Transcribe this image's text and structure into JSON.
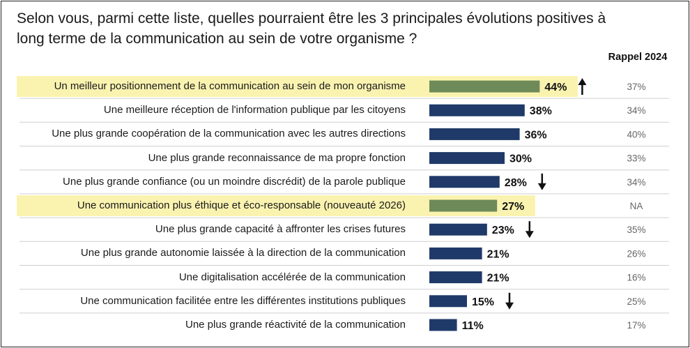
{
  "title": "Selon vous, parmi cette liste, quelles pourraient être les 3 principales évolutions positives à long terme de la communication au sein de votre organisme ?",
  "rappel_header": "Rappel 2024",
  "colors": {
    "bar_main": "#1f3a68",
    "bar_highlight": "#6e8a58",
    "row_highlight": "#faf3b0",
    "separator": "#cfcfcf",
    "rappel_text": "#666666"
  },
  "chart_data": {
    "type": "bar",
    "orientation": "horizontal",
    "title": "Selon vous, parmi cette liste, quelles pourraient être les 3 principales évolutions positives à long terme de la communication au sein de votre organisme ?",
    "xlabel": "",
    "ylabel": "",
    "xlim": [
      0,
      100
    ],
    "unit": "%",
    "categories": [
      "Un meilleur positionnement de la communication au sein de mon organisme",
      "Une meilleure réception de l'information publique par les citoyens",
      "Une plus grande coopération de la communication avec les autres directions",
      "Une plus grande reconnaissance de ma propre fonction",
      "Une plus grande confiance (ou un moindre discrédit) de la parole publique",
      "Une communication plus éthique et éco-responsable (nouveauté 2026)",
      "Une plus grande capacité à affronter les crises futures",
      "Une plus grande autonomie laissée à la direction de la communication",
      "Une digitalisation accélérée de la communication",
      "Une communication facilitée entre les différentes institutions publiques",
      "Une plus grande réactivité de la communication"
    ],
    "values": [
      44,
      38,
      36,
      30,
      28,
      27,
      23,
      21,
      21,
      15,
      11
    ],
    "value_labels": [
      "44%",
      "38%",
      "36%",
      "30%",
      "28%",
      "27%",
      "23%",
      "21%",
      "21%",
      "15%",
      "11%"
    ],
    "highlighted": [
      true,
      false,
      false,
      false,
      false,
      true,
      false,
      false,
      false,
      false,
      false
    ],
    "trend": [
      "up",
      "",
      "",
      "",
      "down",
      "",
      "down",
      "",
      "",
      "down",
      ""
    ],
    "rappel_2024": [
      "37%",
      "34%",
      "40%",
      "33%",
      "34%",
      "NA",
      "35%",
      "26%",
      "16%",
      "25%",
      "17%"
    ]
  }
}
